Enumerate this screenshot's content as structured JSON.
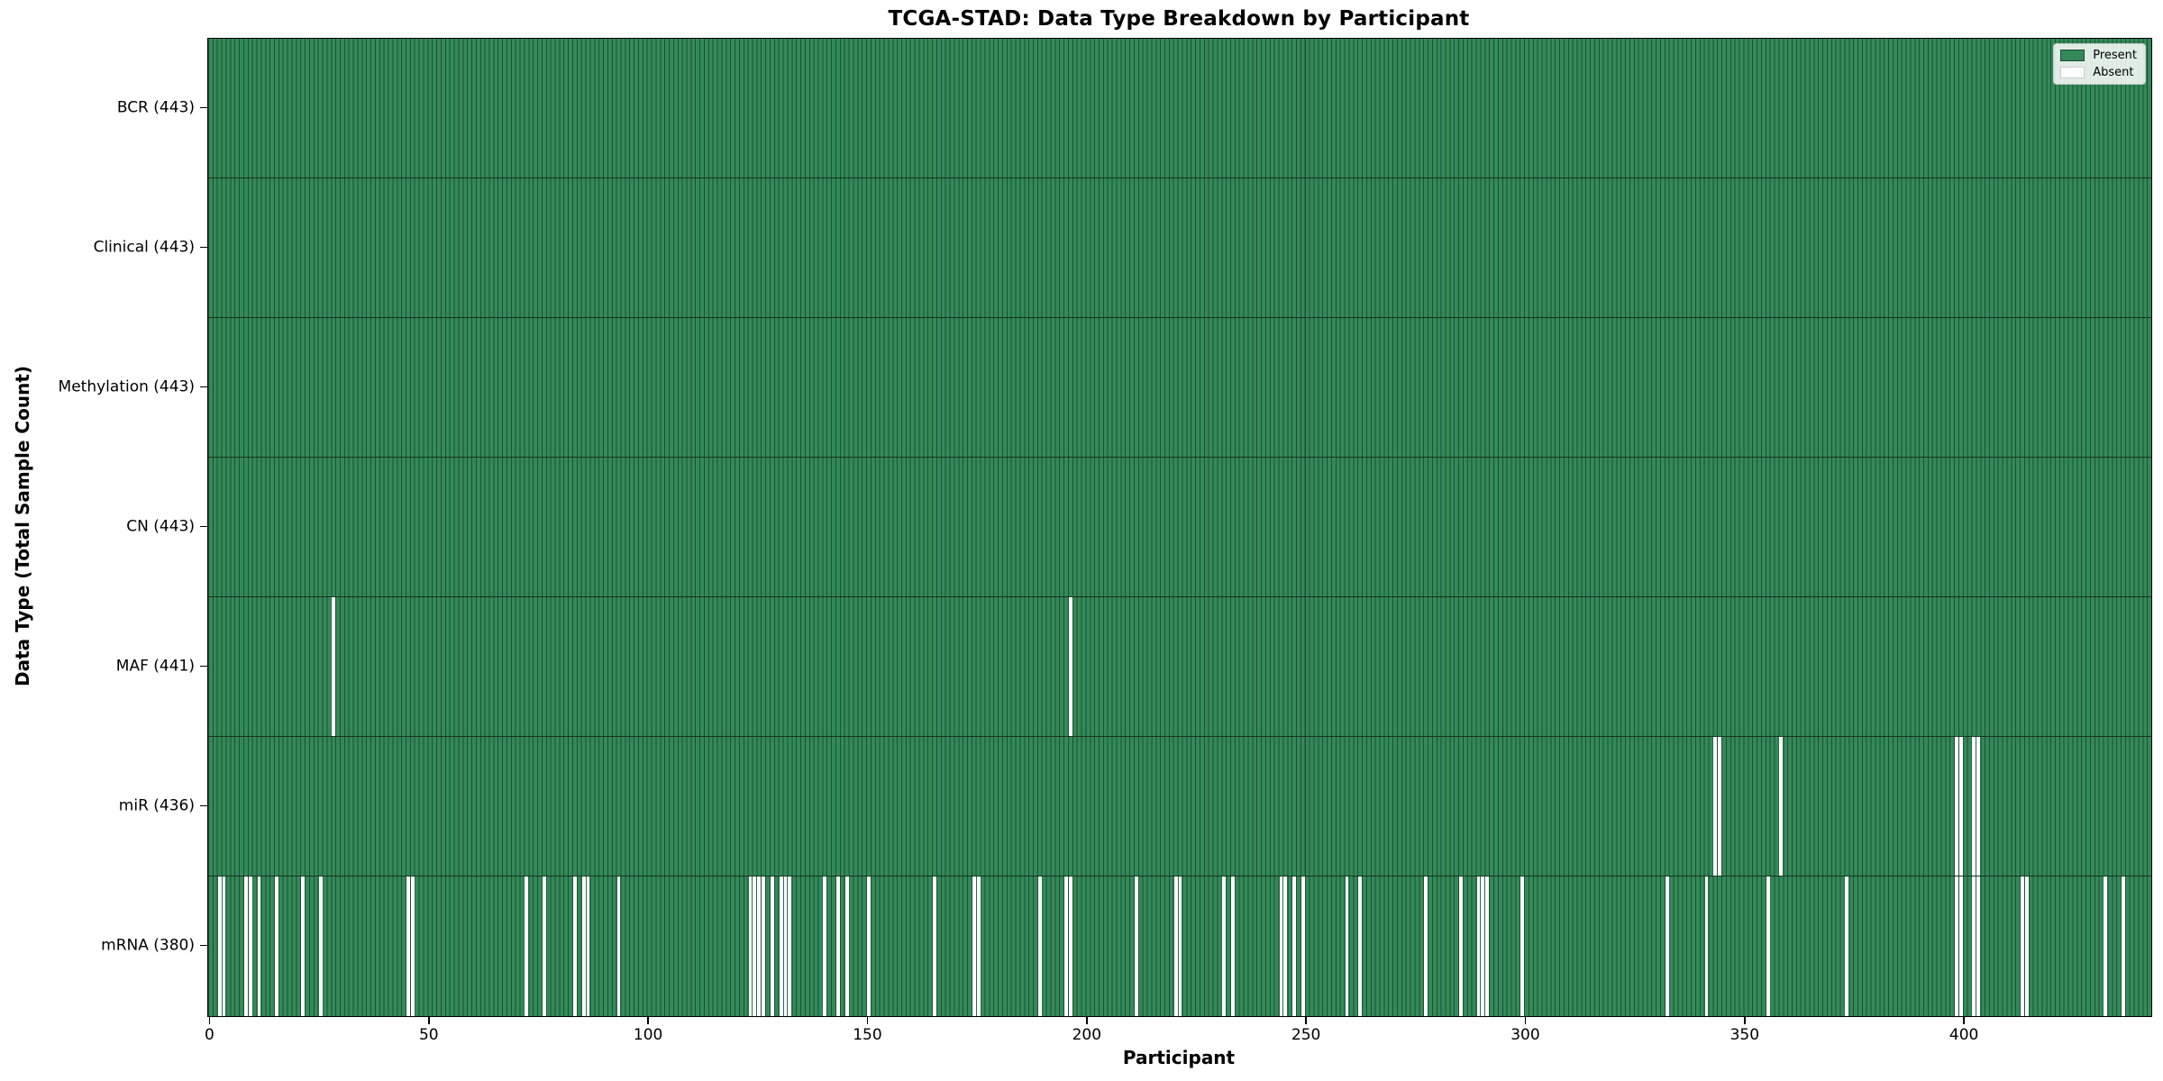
{
  "chart_data": {
    "type": "heatmap",
    "title": "TCGA-STAD: Data Type Breakdown by Participant",
    "xlabel": "Participant",
    "ylabel": "Data Type (Total Sample Count)",
    "n_participants": 443,
    "x_ticks": [
      0,
      50,
      100,
      150,
      200,
      250,
      300,
      350,
      400
    ],
    "legend": {
      "present_label": "Present",
      "absent_label": "Absent",
      "position": "upper right"
    },
    "colors": {
      "present": "#338a58",
      "absent": "#ffffff",
      "bar_edge": "#1e4f36",
      "row_divider": "#16331f",
      "plot_border": "#000000",
      "legend_border": "#c8c8c8"
    },
    "rows": [
      {
        "data_type": "BCR",
        "label": "BCR (443)",
        "present_count": 443,
        "absent_participants": []
      },
      {
        "data_type": "Clinical",
        "label": "Clinical (443)",
        "present_count": 443,
        "absent_participants": []
      },
      {
        "data_type": "Methylation",
        "label": "Methylation (443)",
        "present_count": 443,
        "absent_participants": []
      },
      {
        "data_type": "CN",
        "label": "CN (443)",
        "present_count": 443,
        "absent_participants": []
      },
      {
        "data_type": "MAF",
        "label": "MAF (441)",
        "present_count": 441,
        "absent_participants": [
          28,
          196
        ]
      },
      {
        "data_type": "miR",
        "label": "miR (436)",
        "present_count": 436,
        "absent_participants": [
          343,
          344,
          358,
          398,
          399,
          402,
          403
        ]
      },
      {
        "data_type": "mRNA",
        "label": "mRNA (380)",
        "present_count": 380,
        "absent_participants": [
          2,
          3,
          8,
          9,
          11,
          15,
          21,
          25,
          45,
          46,
          72,
          76,
          83,
          85,
          86,
          93,
          123,
          124,
          125,
          126,
          128,
          130,
          131,
          132,
          140,
          143,
          145,
          150,
          165,
          174,
          175,
          189,
          195,
          196,
          211,
          220,
          221,
          231,
          233,
          244,
          245,
          247,
          249,
          259,
          262,
          277,
          285,
          289,
          290,
          291,
          299,
          332,
          341,
          355,
          373,
          398,
          399,
          402,
          403,
          413,
          414,
          432,
          436
        ]
      }
    ]
  }
}
